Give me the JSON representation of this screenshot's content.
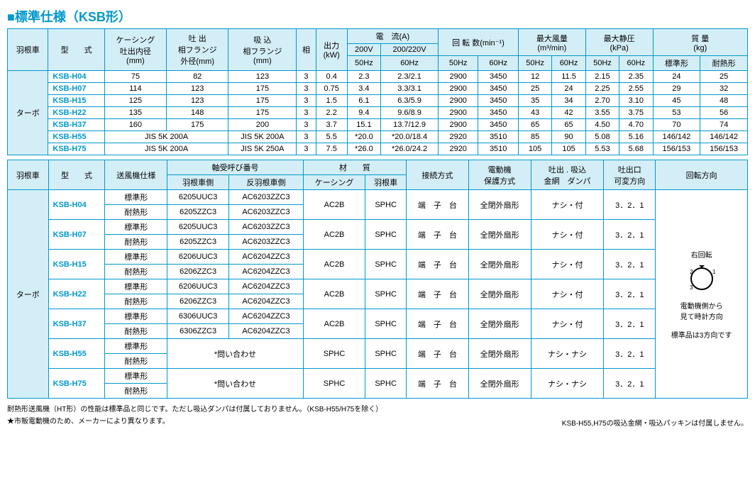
{
  "title": "■標準仕様（KSB形）",
  "colors": {
    "accent": "#0099cc",
    "hdr_bg": "#d4eef7",
    "border": "#0099cc"
  },
  "t1": {
    "headers": {
      "impeller": "羽根車",
      "model": "型　　式",
      "casing": "ケーシング\n吐出内径\n(mm)",
      "outlet": "吐 出\n相フランジ\n外径(mm)",
      "suction": "吸 込\n相フランジ\n(mm)",
      "phase": "相",
      "power": "出力\n(kW)",
      "current": "電　流(A)",
      "current_200": "200V",
      "current_220": "200/220V",
      "rpm": "回 転 数(min⁻¹)",
      "airflow": "最大風量\n(m³/min)",
      "pressure": "最大静圧\n(kPa)",
      "mass": "質 量\n(kg)",
      "hz50": "50Hz",
      "hz60": "60Hz",
      "std": "標準形",
      "heat": "耐熱形"
    },
    "group": "ターボ",
    "rows": [
      {
        "model": "KSB-H04",
        "casing": "75",
        "outlet": "82",
        "suction": "123",
        "phase": "3",
        "power": "0.4",
        "c50": "2.3",
        "c60": "2.3/2.1",
        "r50": "2900",
        "r60": "3450",
        "a50": "12",
        "a60": "11.5",
        "p50": "2.15",
        "p60": "2.35",
        "mstd": "24",
        "mheat": "25"
      },
      {
        "model": "KSB-H07",
        "casing": "114",
        "outlet": "123",
        "suction": "175",
        "phase": "3",
        "power": "0.75",
        "c50": "3.4",
        "c60": "3.3/3.1",
        "r50": "2900",
        "r60": "3450",
        "a50": "25",
        "a60": "24",
        "p50": "2.25",
        "p60": "2.55",
        "mstd": "29",
        "mheat": "32"
      },
      {
        "model": "KSB-H15",
        "casing": "125",
        "outlet": "123",
        "suction": "175",
        "phase": "3",
        "power": "1.5",
        "c50": "6.1",
        "c60": "6.3/5.9",
        "r50": "2900",
        "r60": "3450",
        "a50": "35",
        "a60": "34",
        "p50": "2.70",
        "p60": "3.10",
        "mstd": "45",
        "mheat": "48"
      },
      {
        "model": "KSB-H22",
        "casing": "135",
        "outlet": "148",
        "suction": "175",
        "phase": "3",
        "power": "2.2",
        "c50": "9.4",
        "c60": "9.6/8.9",
        "r50": "2900",
        "r60": "3450",
        "a50": "43",
        "a60": "42",
        "p50": "3.55",
        "p60": "3.75",
        "mstd": "53",
        "mheat": "56"
      },
      {
        "model": "KSB-H37",
        "casing": "160",
        "outlet": "175",
        "suction": "200",
        "phase": "3",
        "power": "3.7",
        "c50": "15.1",
        "c60": "13.7/12.9",
        "r50": "2900",
        "r60": "3450",
        "a50": "65",
        "a60": "65",
        "p50": "4.50",
        "p60": "4.70",
        "mstd": "70",
        "mheat": "74"
      },
      {
        "model": "KSB-H55",
        "casing_span": "JIS 5K 200A",
        "suction": "JIS 5K 200A",
        "phase": "3",
        "power": "5.5",
        "c50": "*20.0",
        "c60": "*20.0/18.4",
        "r50": "2920",
        "r60": "3510",
        "a50": "85",
        "a60": "90",
        "p50": "5.08",
        "p60": "5.16",
        "mstd": "146/142",
        "mheat": "146/142"
      },
      {
        "model": "KSB-H75",
        "casing_span": "JIS 5K 200A",
        "suction": "JIS 5K 250A",
        "phase": "3",
        "power": "7.5",
        "c50": "*26.0",
        "c60": "*26.0/24.2",
        "r50": "2920",
        "r60": "3510",
        "a50": "105",
        "a60": "105",
        "p50": "5.53",
        "p60": "5.68",
        "mstd": "156/153",
        "mheat": "156/153"
      }
    ]
  },
  "t2": {
    "headers": {
      "impeller": "羽根車",
      "model": "型　　式",
      "spec": "送風機仕様",
      "bearing": "軸受呼び番号",
      "bearing_imp": "羽根車側",
      "bearing_opp": "反羽根車側",
      "material": "材　　質",
      "mat_casing": "ケーシング",
      "mat_impeller": "羽根車",
      "connection": "接続方式",
      "protection": "電動機\n保護方式",
      "mesh": "吐出 . 吸込\n金網　ダンパ",
      "outlet_dir": "吐出口\n可変方向",
      "rotation": "回転方向"
    },
    "group": "ターボ",
    "spec_std": "標準形",
    "spec_heat": "耐熱形",
    "rows": [
      {
        "model": "KSB-H04",
        "b_std": [
          "6205UUC3",
          "AC6203ZZC3"
        ],
        "b_heat": [
          "6205ZZC3",
          "AC6203ZZC3"
        ],
        "mat_c": "AC2B",
        "mat_i": "SPHC",
        "conn": "端　子　台",
        "prot": "全閉外扇形",
        "mesh": "ナシ・付",
        "dir": "3．2．1"
      },
      {
        "model": "KSB-H07",
        "b_std": [
          "6205UUC3",
          "AC6203ZZC3"
        ],
        "b_heat": [
          "6205ZZC3",
          "AC6203ZZC3"
        ],
        "mat_c": "AC2B",
        "mat_i": "SPHC",
        "conn": "端　子　台",
        "prot": "全閉外扇形",
        "mesh": "ナシ・付",
        "dir": "3．2．1"
      },
      {
        "model": "KSB-H15",
        "b_std": [
          "6206UUC3",
          "AC6204ZZC3"
        ],
        "b_heat": [
          "6206ZZC3",
          "AC6204ZZC3"
        ],
        "mat_c": "AC2B",
        "mat_i": "SPHC",
        "conn": "端　子　台",
        "prot": "全閉外扇形",
        "mesh": "ナシ・付",
        "dir": "3．2．1"
      },
      {
        "model": "KSB-H22",
        "b_std": [
          "6206UUC3",
          "AC6204ZZC3"
        ],
        "b_heat": [
          "6206ZZC3",
          "AC6204ZZC3"
        ],
        "mat_c": "AC2B",
        "mat_i": "SPHC",
        "conn": "端　子　台",
        "prot": "全閉外扇形",
        "mesh": "ナシ・付",
        "dir": "3．2．1"
      },
      {
        "model": "KSB-H37",
        "b_std": [
          "6306UUC3",
          "AC6204ZZC3"
        ],
        "b_heat": [
          "6306ZZC3",
          "AC6204ZZC3"
        ],
        "mat_c": "AC2B",
        "mat_i": "SPHC",
        "conn": "端　子　台",
        "prot": "全閉外扇形",
        "mesh": "ナシ・付",
        "dir": "3．2．1"
      },
      {
        "model": "KSB-H55",
        "inquiry": "*問い合わせ",
        "mat_c": "SPHC",
        "mat_i": "SPHC",
        "conn": "端　子　台",
        "prot": "全閉外扇形",
        "mesh": "ナシ・ナシ",
        "dir": "3．2．1"
      },
      {
        "model": "KSB-H75",
        "inquiry": "*問い合わせ",
        "mat_c": "SPHC",
        "mat_i": "SPHC",
        "conn": "端　子　台",
        "prot": "全閉外扇形",
        "mesh": "ナシ・ナシ",
        "dir": "3．2．1"
      }
    ],
    "rotation_label": "右回転",
    "rotation_note1": "電動機側から",
    "rotation_note2": "見て時計方向",
    "rotation_note3": "標準品は3方向です"
  },
  "notes": {
    "n1": "耐熱形送風機（HT形）の性能は標準品と同じです。ただし吸込ダンパは付属しておりません。（KSB-H55/H75を除く）",
    "n2": "★市販電動機のため、メーカーにより異なります。",
    "n3": "KSB-H55,H75の吸込金網・吸込パッキンは付属しません。"
  }
}
